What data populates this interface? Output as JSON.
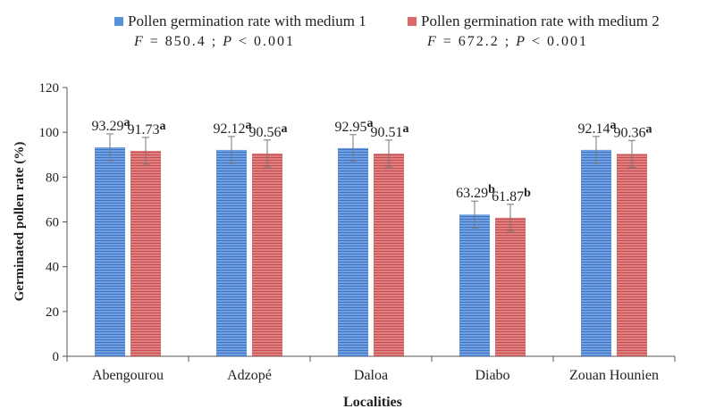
{
  "chart_data": {
    "type": "bar",
    "categories": [
      "Abengourou",
      "Adzopé",
      "Daloa",
      "Diabo",
      "Zouan Hounien"
    ],
    "series": [
      {
        "name": "Pollen germination rate with medium 1",
        "color": "#5b8fd6",
        "values": [
          93.29,
          92.12,
          92.95,
          63.29,
          92.14
        ],
        "labels": [
          "93.29",
          "92.12",
          "92.95",
          "63.29",
          "92.14"
        ],
        "letters": [
          "a",
          "a",
          "a",
          "b",
          "a"
        ],
        "errors": [
          6,
          6,
          6,
          6,
          6
        ],
        "stat_label": "F = 850.4 ; P < 0.001",
        "stat_F_symbol": "F",
        "stat_F_value": "= 850.4 ;",
        "stat_P_symbol": "P",
        "stat_P_value": "< 0.001"
      },
      {
        "name": "Pollen germination rate with medium 2",
        "color": "#d9696b",
        "values": [
          91.73,
          90.56,
          90.51,
          61.87,
          90.36
        ],
        "labels": [
          "91.73",
          "90.56",
          "90.51",
          "61.87",
          "90.36"
        ],
        "letters": [
          "a",
          "a",
          "a",
          "b",
          "a"
        ],
        "errors": [
          6,
          6,
          6,
          6,
          6
        ],
        "stat_label": "F = 672.2 ; P < 0.001",
        "stat_F_symbol": "F",
        "stat_F_value": "= 672.2 ;",
        "stat_P_symbol": "P",
        "stat_P_value": "< 0.001"
      }
    ],
    "xlabel": "Localities",
    "ylabel": "Germinated pollen rate (%)",
    "ylim": [
      0,
      120
    ],
    "yticks": [
      0,
      20,
      40,
      60,
      80,
      100,
      120
    ],
    "grid": false,
    "legend_position": "top"
  }
}
